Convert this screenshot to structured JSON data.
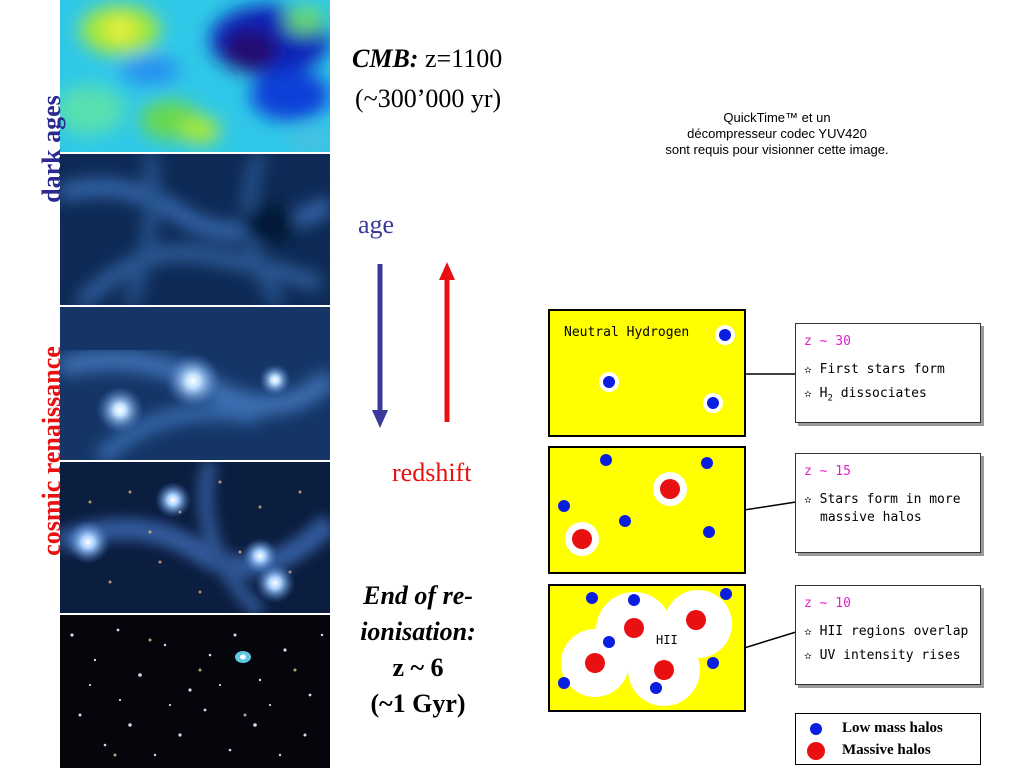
{
  "left": {
    "label_dark_ages": "dark ages",
    "label_cosmic_renaissance": "cosmic renaissance"
  },
  "cmb": {
    "title_italic": "CMB:",
    "title_rest": " z=1100",
    "age": "(~300’000 yr)"
  },
  "quicktime": {
    "line1": "QuickTime™ et un",
    "line2": "décompresseur codec YUV420",
    "line3": "sont requis pour visionner cette image."
  },
  "arrows": {
    "age_label": "age",
    "redshift_label": "redshift",
    "age_color": "#3a3a9a",
    "redshift_color": "#e81010"
  },
  "end": {
    "line1": "End of re-",
    "line2": "ionisation:",
    "line3": "z ~ 6",
    "line4": "(~1 Gyr)"
  },
  "diagram": {
    "box1_label": "Neutral Hydrogen",
    "box3_label": "HII",
    "info1": {
      "z": "z ~ 30",
      "item1": "First stars form",
      "item2_pre": "H",
      "item2_sub": "2",
      "item2_post": " dissociates"
    },
    "info2": {
      "z": "z ~ 15",
      "item1": "Stars form in more",
      "item1b": "massive halos"
    },
    "info3": {
      "z": "z ~ 10",
      "item1": "HII regions overlap",
      "item2": "UV intensity rises"
    },
    "star_glyph": "✫"
  },
  "legend": {
    "low": "Low mass halos",
    "massive": "Massive halos",
    "low_color": "#0a1ee0",
    "massive_color": "#e81010"
  },
  "colors": {
    "yellow": "#ffff00",
    "magenta": "#e020c8"
  }
}
